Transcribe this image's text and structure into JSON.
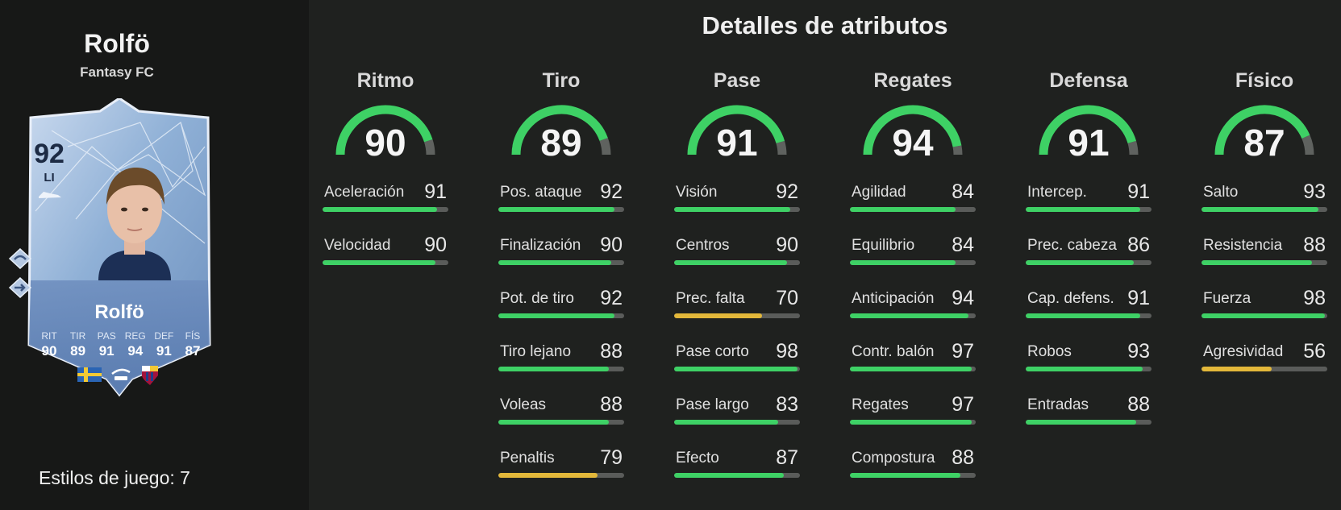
{
  "player": {
    "name": "Rolfö",
    "club": "Fantasy FC",
    "rating": "92",
    "position": "LI",
    "card_name": "Rolfö",
    "card_stat_labels": [
      "RIT",
      "TIR",
      "PAS",
      "REG",
      "DEF",
      "FÍS"
    ],
    "card_stat_values": [
      "90",
      "89",
      "91",
      "94",
      "91",
      "87"
    ],
    "icons": [
      "boot-icon",
      "playstyle-icon",
      "playstyle-icon",
      "sweden-flag-icon",
      "liga-f-logo-icon",
      "fc-barcelona-crest-icon"
    ]
  },
  "playstyles_label": "Estilos de juego: 7",
  "section_title": "Detalles de atributos",
  "colors": {
    "high": "#3ed165",
    "mid": "#e3b83a",
    "track": "#5a5c5a",
    "gauge_track": "#5f625f"
  },
  "categories": [
    {
      "title": "Ritmo",
      "value": 90,
      "stats": [
        {
          "label": "Aceleración",
          "value": 91
        },
        {
          "label": "Velocidad",
          "value": 90
        }
      ]
    },
    {
      "title": "Tiro",
      "value": 89,
      "stats": [
        {
          "label": "Pos. ataque",
          "value": 92
        },
        {
          "label": "Finalización",
          "value": 90
        },
        {
          "label": "Pot. de tiro",
          "value": 92
        },
        {
          "label": "Tiro lejano",
          "value": 88
        },
        {
          "label": "Voleas",
          "value": 88
        },
        {
          "label": "Penaltis",
          "value": 79
        }
      ]
    },
    {
      "title": "Pase",
      "value": 91,
      "stats": [
        {
          "label": "Visión",
          "value": 92
        },
        {
          "label": "Centros",
          "value": 90
        },
        {
          "label": "Prec. falta",
          "value": 70
        },
        {
          "label": "Pase corto",
          "value": 98
        },
        {
          "label": "Pase largo",
          "value": 83
        },
        {
          "label": "Efecto",
          "value": 87
        }
      ]
    },
    {
      "title": "Regates",
      "value": 94,
      "stats": [
        {
          "label": "Agilidad",
          "value": 84
        },
        {
          "label": "Equilibrio",
          "value": 84
        },
        {
          "label": "Anticipación",
          "value": 94
        },
        {
          "label": "Contr. balón",
          "value": 97
        },
        {
          "label": "Regates",
          "value": 97
        },
        {
          "label": "Compostura",
          "value": 88
        }
      ]
    },
    {
      "title": "Defensa",
      "value": 91,
      "stats": [
        {
          "label": "Intercep.",
          "value": 91
        },
        {
          "label": "Prec. cabeza",
          "value": 86
        },
        {
          "label": "Cap. defens.",
          "value": 91
        },
        {
          "label": "Robos",
          "value": 93
        },
        {
          "label": "Entradas",
          "value": 88
        }
      ]
    },
    {
      "title": "Físico",
      "value": 87,
      "stats": [
        {
          "label": "Salto",
          "value": 93
        },
        {
          "label": "Resistencia",
          "value": 88
        },
        {
          "label": "Fuerza",
          "value": 98
        },
        {
          "label": "Agresividad",
          "value": 56
        }
      ]
    }
  ]
}
